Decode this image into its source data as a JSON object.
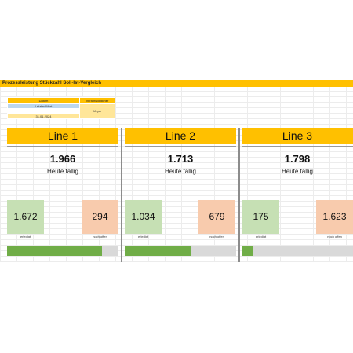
{
  "sheet_title": "Prozessleistung Stückzahl Soll-Ist-Vergleich",
  "info": {
    "date_header": "Datum",
    "responsible_header": "Verantwortlicher",
    "sub_label": "Letzter Wert",
    "responsible_value": "Meyer",
    "date_value": "31.01.2024"
  },
  "lines": [
    {
      "name": "Line 1",
      "due": "1.966",
      "due_label": "Heute fällig",
      "done": "1.672",
      "done_label": "erledigt",
      "open": "294",
      "open_label": "noch offen",
      "progress_fraction": 0.85
    },
    {
      "name": "Line 2",
      "due": "1.713",
      "due_label": "Heute fällig",
      "done": "1.034",
      "done_label": "erledigt",
      "open": "679",
      "open_label": "noch offen",
      "progress_fraction": 0.6
    },
    {
      "name": "Line 3",
      "due": "1.798",
      "due_label": "Heute fällig",
      "done": "175",
      "done_label": "erledigt",
      "open": "1.623",
      "open_label": "noch offen",
      "progress_fraction": 0.1
    }
  ],
  "colors": {
    "header_accent": "#ffc000",
    "done_fill": "#c6e0b4",
    "open_fill": "#f8cbad",
    "progress_fill": "#70ad47",
    "progress_track": "#d9d9d9",
    "subheader_fill": "#bdd7ee"
  }
}
